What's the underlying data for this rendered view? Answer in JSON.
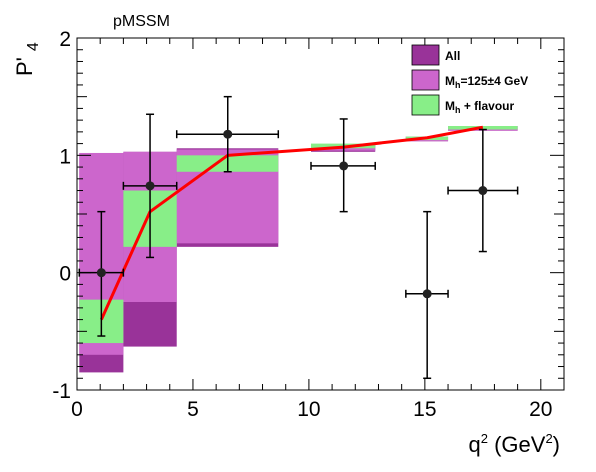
{
  "chart_data": {
    "type": "bar",
    "title": "pMSSM",
    "xlabel_main": "q",
    "xlabel_sup": "2",
    "xlabel_unit_open": " (GeV",
    "xlabel_unit_sup": "2",
    "xlabel_unit_close": ")",
    "ylabel_main": "P'",
    "ylabel_sub": "4",
    "xlim": [
      0,
      21
    ],
    "ylim": [
      -1,
      2
    ],
    "xticks": [
      0,
      5,
      10,
      15,
      20
    ],
    "xtick_labels": [
      "0",
      "5",
      "10",
      "15",
      "20"
    ],
    "yticks": [
      -1,
      0,
      1,
      2
    ],
    "ytick_labels": [
      "-1",
      "0",
      "1",
      "2"
    ],
    "grid": false,
    "legend_position": "top-right",
    "legend": [
      {
        "key": "all",
        "label": "All",
        "sub": "",
        "rest": "",
        "color": "#993399"
      },
      {
        "key": "mh",
        "label": "M",
        "sub": "h",
        "rest": "=125±4 GeV",
        "color": "#cc66cc"
      },
      {
        "key": "flav",
        "label": "M",
        "sub": "h",
        "rest": " + flavour",
        "color": "#88ee88"
      }
    ],
    "bands": {
      "all": [
        {
          "x0": 0.1,
          "x1": 2.0,
          "y0": -0.85,
          "y1": 1.02
        },
        {
          "x0": 2.0,
          "x1": 4.3,
          "y0": -0.63,
          "y1": 1.03
        },
        {
          "x0": 4.3,
          "x1": 8.68,
          "y0": 0.22,
          "y1": 1.06
        },
        {
          "x0": 10.09,
          "x1": 12.86,
          "y0": 1.03,
          "y1": 1.09
        },
        {
          "x0": 14.18,
          "x1": 16.0,
          "y0": 1.12,
          "y1": 1.16
        },
        {
          "x0": 16.0,
          "x1": 19.0,
          "y0": 1.21,
          "y1": 1.25
        }
      ],
      "mh": [
        {
          "x0": 0.1,
          "x1": 2.0,
          "y0": -0.7,
          "y1": 1.02
        },
        {
          "x0": 2.0,
          "x1": 4.3,
          "y0": -0.25,
          "y1": 1.03
        },
        {
          "x0": 4.3,
          "x1": 8.68,
          "y0": 0.25,
          "y1": 1.05
        },
        {
          "x0": 10.09,
          "x1": 12.86,
          "y0": 1.04,
          "y1": 1.09
        },
        {
          "x0": 14.18,
          "x1": 16.0,
          "y0": 1.12,
          "y1": 1.16
        },
        {
          "x0": 16.0,
          "x1": 19.0,
          "y0": 1.21,
          "y1": 1.25
        }
      ],
      "flav": [
        {
          "x0": 0.1,
          "x1": 2.0,
          "y0": -0.6,
          "y1": -0.23
        },
        {
          "x0": 2.0,
          "x1": 4.3,
          "y0": 0.22,
          "y1": 0.7
        },
        {
          "x0": 4.3,
          "x1": 8.68,
          "y0": 0.86,
          "y1": 1.0
        },
        {
          "x0": 10.09,
          "x1": 12.86,
          "y0": 1.06,
          "y1": 1.1
        },
        {
          "x0": 14.18,
          "x1": 16.0,
          "y0": 1.13,
          "y1": 1.16
        },
        {
          "x0": 16.0,
          "x1": 19.0,
          "y0": 1.22,
          "y1": 1.25
        }
      ]
    },
    "prediction_line": {
      "color": "#ff0000",
      "x": [
        1.05,
        3.15,
        6.5,
        11.5,
        15.1,
        17.5
      ],
      "y": [
        -0.4,
        0.52,
        1.0,
        1.07,
        1.15,
        1.24
      ]
    },
    "measurements": [
      {
        "x": 1.05,
        "xlo": 0.1,
        "xhi": 2.0,
        "y": 0.0,
        "ylo": -0.54,
        "yhi": 0.52
      },
      {
        "x": 3.15,
        "xlo": 2.0,
        "xhi": 4.3,
        "y": 0.74,
        "ylo": 0.13,
        "yhi": 1.35
      },
      {
        "x": 6.5,
        "xlo": 4.3,
        "xhi": 8.68,
        "y": 1.18,
        "ylo": 0.86,
        "yhi": 1.5
      },
      {
        "x": 11.5,
        "xlo": 10.09,
        "xhi": 12.86,
        "y": 0.91,
        "ylo": 0.52,
        "yhi": 1.31
      },
      {
        "x": 15.1,
        "xlo": 14.18,
        "xhi": 16.0,
        "y": -0.18,
        "ylo": -0.9,
        "yhi": 0.52
      },
      {
        "x": 17.5,
        "xlo": 16.0,
        "xhi": 19.0,
        "y": 0.7,
        "ylo": 0.18,
        "yhi": 1.22
      }
    ]
  }
}
